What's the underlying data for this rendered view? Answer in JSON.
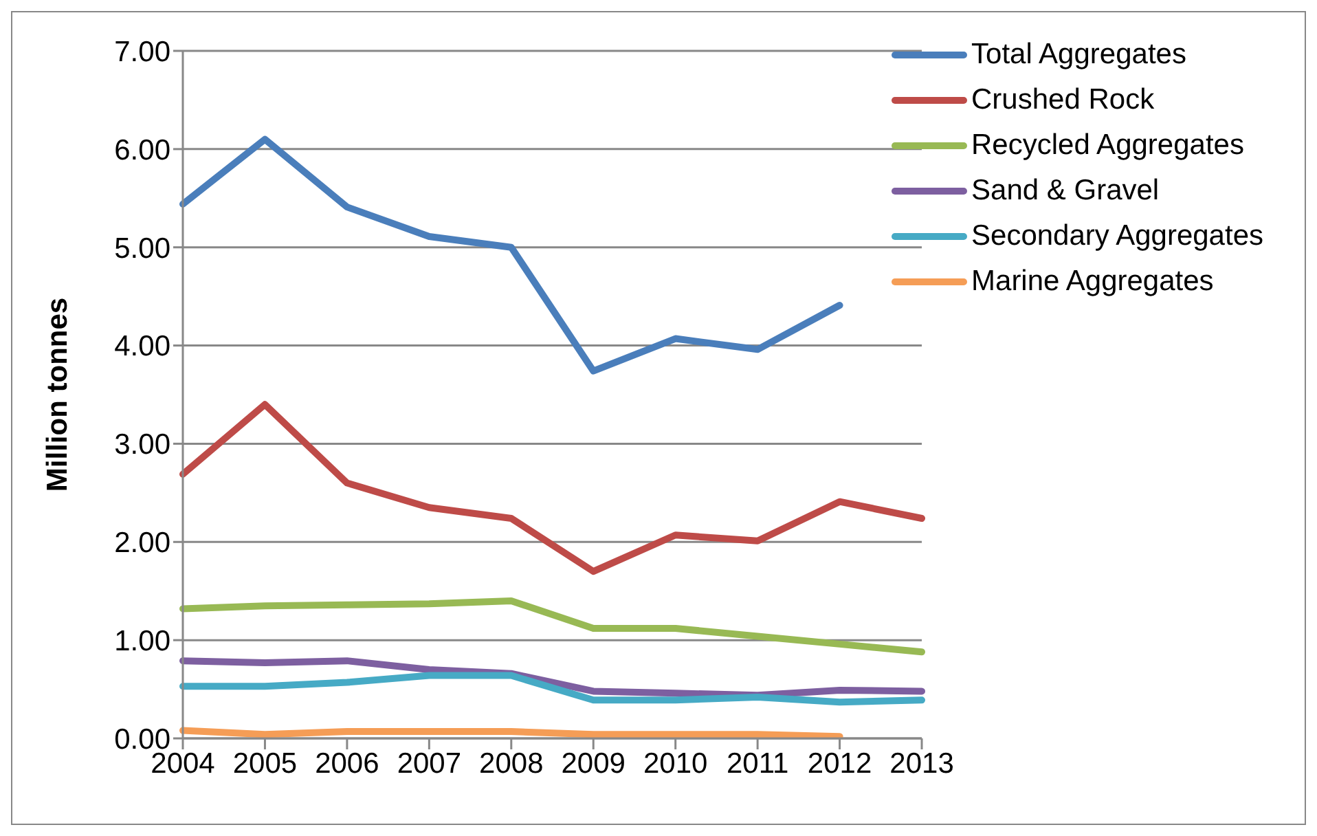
{
  "chart_data": {
    "type": "line",
    "ylabel": "Million tonnes",
    "categories": [
      "2004",
      "2005",
      "2006",
      "2007",
      "2008",
      "2009",
      "2010",
      "2011",
      "2012",
      "2013"
    ],
    "series": [
      {
        "name": "Total Aggregates",
        "color": "#4a7ebb",
        "values": [
          5.44,
          6.1,
          5.41,
          5.11,
          5.0,
          3.74,
          4.07,
          3.96,
          4.41,
          null
        ]
      },
      {
        "name": "Crushed Rock",
        "color": "#be4b48",
        "values": [
          2.69,
          3.4,
          2.6,
          2.35,
          2.24,
          1.7,
          2.07,
          2.01,
          2.41,
          2.24
        ]
      },
      {
        "name": "Recycled Aggregates",
        "color": "#98b954",
        "values": [
          1.32,
          1.35,
          1.36,
          1.37,
          1.4,
          1.12,
          1.12,
          1.04,
          0.96,
          0.88
        ]
      },
      {
        "name": "Sand & Gravel",
        "color": "#7d5fa0",
        "values": [
          0.79,
          0.77,
          0.79,
          0.7,
          0.66,
          0.48,
          0.46,
          0.44,
          0.49,
          0.48
        ]
      },
      {
        "name": "Secondary Aggregates",
        "color": "#46aac5",
        "values": [
          0.53,
          0.53,
          0.57,
          0.64,
          0.64,
          0.39,
          0.39,
          0.42,
          0.37,
          0.39
        ]
      },
      {
        "name": "Marine Aggregates",
        "color": "#f59d56",
        "values": [
          0.08,
          0.04,
          0.07,
          0.07,
          0.07,
          0.04,
          0.04,
          0.04,
          0.02,
          null
        ]
      }
    ],
    "ylim": [
      0,
      7
    ],
    "yticks": [
      {
        "value": 0,
        "label": "0.00"
      },
      {
        "value": 1,
        "label": "1.00"
      },
      {
        "value": 2,
        "label": "2.00"
      },
      {
        "value": 3,
        "label": "3.00"
      },
      {
        "value": 4,
        "label": "4.00"
      },
      {
        "value": 5,
        "label": "5.00"
      },
      {
        "value": 6,
        "label": "6.00"
      },
      {
        "value": 7,
        "label": "7.00"
      }
    ],
    "grid": "y",
    "legend": "top right",
    "marker": "none",
    "line_style": "solid"
  }
}
